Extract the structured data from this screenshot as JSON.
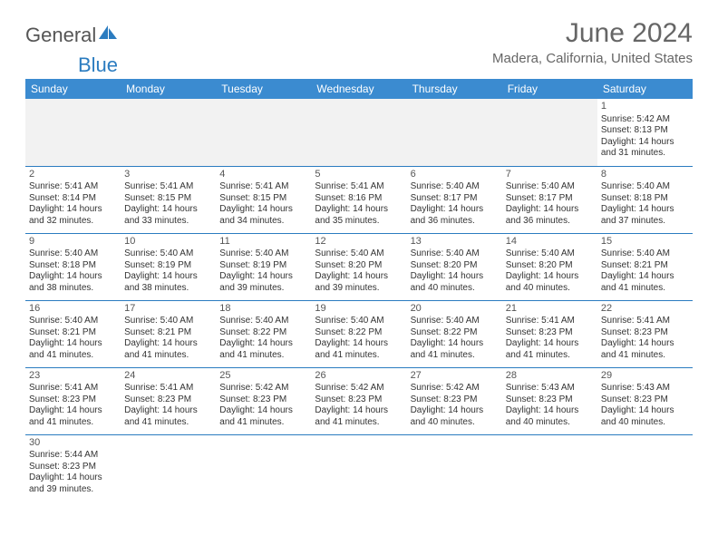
{
  "logo": {
    "text1": "General",
    "text2": "Blue",
    "icon_color": "#2b7cc0"
  },
  "title": "June 2024",
  "location": "Madera, California, United States",
  "colors": {
    "header_bg": "#3b8bd0",
    "header_fg": "#ffffff",
    "border": "#2b7cc0",
    "text": "#333333",
    "muted": "#666666",
    "empty_bg": "#f2f2f2"
  },
  "day_headers": [
    "Sunday",
    "Monday",
    "Tuesday",
    "Wednesday",
    "Thursday",
    "Friday",
    "Saturday"
  ],
  "weeks": [
    [
      null,
      null,
      null,
      null,
      null,
      null,
      {
        "n": "1",
        "sr": "5:42 AM",
        "ss": "8:13 PM",
        "dl": "14 hours and 31 minutes."
      }
    ],
    [
      {
        "n": "2",
        "sr": "5:41 AM",
        "ss": "8:14 PM",
        "dl": "14 hours and 32 minutes."
      },
      {
        "n": "3",
        "sr": "5:41 AM",
        "ss": "8:15 PM",
        "dl": "14 hours and 33 minutes."
      },
      {
        "n": "4",
        "sr": "5:41 AM",
        "ss": "8:15 PM",
        "dl": "14 hours and 34 minutes."
      },
      {
        "n": "5",
        "sr": "5:41 AM",
        "ss": "8:16 PM",
        "dl": "14 hours and 35 minutes."
      },
      {
        "n": "6",
        "sr": "5:40 AM",
        "ss": "8:17 PM",
        "dl": "14 hours and 36 minutes."
      },
      {
        "n": "7",
        "sr": "5:40 AM",
        "ss": "8:17 PM",
        "dl": "14 hours and 36 minutes."
      },
      {
        "n": "8",
        "sr": "5:40 AM",
        "ss": "8:18 PM",
        "dl": "14 hours and 37 minutes."
      }
    ],
    [
      {
        "n": "9",
        "sr": "5:40 AM",
        "ss": "8:18 PM",
        "dl": "14 hours and 38 minutes."
      },
      {
        "n": "10",
        "sr": "5:40 AM",
        "ss": "8:19 PM",
        "dl": "14 hours and 38 minutes."
      },
      {
        "n": "11",
        "sr": "5:40 AM",
        "ss": "8:19 PM",
        "dl": "14 hours and 39 minutes."
      },
      {
        "n": "12",
        "sr": "5:40 AM",
        "ss": "8:20 PM",
        "dl": "14 hours and 39 minutes."
      },
      {
        "n": "13",
        "sr": "5:40 AM",
        "ss": "8:20 PM",
        "dl": "14 hours and 40 minutes."
      },
      {
        "n": "14",
        "sr": "5:40 AM",
        "ss": "8:20 PM",
        "dl": "14 hours and 40 minutes."
      },
      {
        "n": "15",
        "sr": "5:40 AM",
        "ss": "8:21 PM",
        "dl": "14 hours and 41 minutes."
      }
    ],
    [
      {
        "n": "16",
        "sr": "5:40 AM",
        "ss": "8:21 PM",
        "dl": "14 hours and 41 minutes."
      },
      {
        "n": "17",
        "sr": "5:40 AM",
        "ss": "8:21 PM",
        "dl": "14 hours and 41 minutes."
      },
      {
        "n": "18",
        "sr": "5:40 AM",
        "ss": "8:22 PM",
        "dl": "14 hours and 41 minutes."
      },
      {
        "n": "19",
        "sr": "5:40 AM",
        "ss": "8:22 PM",
        "dl": "14 hours and 41 minutes."
      },
      {
        "n": "20",
        "sr": "5:40 AM",
        "ss": "8:22 PM",
        "dl": "14 hours and 41 minutes."
      },
      {
        "n": "21",
        "sr": "5:41 AM",
        "ss": "8:23 PM",
        "dl": "14 hours and 41 minutes."
      },
      {
        "n": "22",
        "sr": "5:41 AM",
        "ss": "8:23 PM",
        "dl": "14 hours and 41 minutes."
      }
    ],
    [
      {
        "n": "23",
        "sr": "5:41 AM",
        "ss": "8:23 PM",
        "dl": "14 hours and 41 minutes."
      },
      {
        "n": "24",
        "sr": "5:41 AM",
        "ss": "8:23 PM",
        "dl": "14 hours and 41 minutes."
      },
      {
        "n": "25",
        "sr": "5:42 AM",
        "ss": "8:23 PM",
        "dl": "14 hours and 41 minutes."
      },
      {
        "n": "26",
        "sr": "5:42 AM",
        "ss": "8:23 PM",
        "dl": "14 hours and 41 minutes."
      },
      {
        "n": "27",
        "sr": "5:42 AM",
        "ss": "8:23 PM",
        "dl": "14 hours and 40 minutes."
      },
      {
        "n": "28",
        "sr": "5:43 AM",
        "ss": "8:23 PM",
        "dl": "14 hours and 40 minutes."
      },
      {
        "n": "29",
        "sr": "5:43 AM",
        "ss": "8:23 PM",
        "dl": "14 hours and 40 minutes."
      }
    ],
    [
      {
        "n": "30",
        "sr": "5:44 AM",
        "ss": "8:23 PM",
        "dl": "14 hours and 39 minutes."
      },
      null,
      null,
      null,
      null,
      null,
      null
    ]
  ],
  "labels": {
    "sunrise": "Sunrise:",
    "sunset": "Sunset:",
    "daylight": "Daylight:"
  }
}
